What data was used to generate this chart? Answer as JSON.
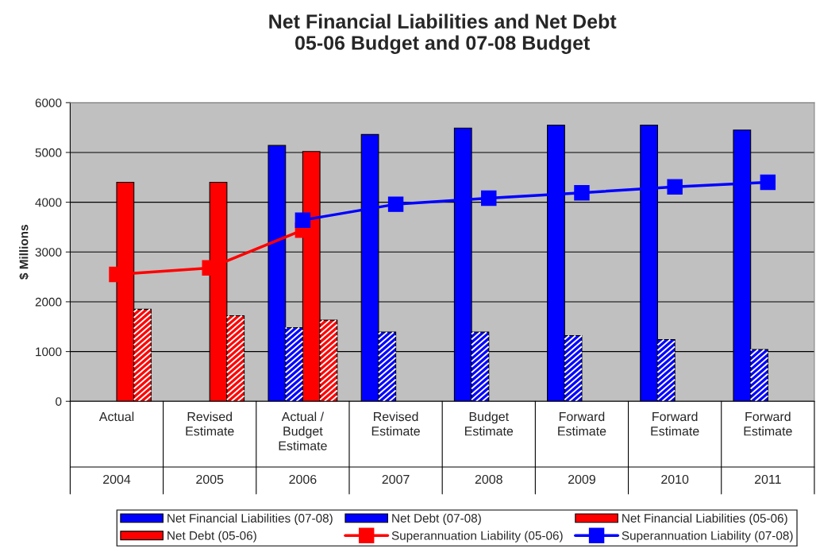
{
  "chart_data": {
    "type": "bar",
    "title": "Net Financial Liabilities and Net Debt\n05-06 Budget and 07-08 Budget",
    "ylabel": "$ Millions",
    "categories": [
      "Actual\n2004",
      "Revised\nEstimate\n2005",
      "Actual /\nBudget\nEstimate\n2006",
      "Revised\nEstimate\n2007",
      "Budget\nEstimate\n2008",
      "Forward\nEstimate\n2009",
      "Forward\nEstimate\n2010",
      "Forward\nEstimate\n2011"
    ],
    "series": [
      {
        "name": "Net Financial Liabilities (07-08)",
        "type": "bar",
        "color": "#0000ff",
        "values": [
          null,
          null,
          5140,
          5360,
          5490,
          5550,
          5550,
          5450
        ]
      },
      {
        "name": "Net Debt (07-08)",
        "type": "bar",
        "color": "#0000ff",
        "values": [
          null,
          null,
          1480,
          1390,
          1390,
          1320,
          1240,
          1040
        ]
      },
      {
        "name": "Net Financial Liabilities (05-06)",
        "type": "bar",
        "color": "#ff0000",
        "values": [
          4400,
          4400,
          5020,
          null,
          null,
          null,
          null,
          null
        ]
      },
      {
        "name": "Net Debt (05-06)",
        "type": "bar",
        "color": "#ff0000",
        "values": [
          1850,
          1720,
          1630,
          null,
          null,
          null,
          null,
          null
        ]
      },
      {
        "name": "Superannuation Liability (05-06)",
        "type": "line",
        "color": "#ff0000",
        "values": [
          2550,
          2680,
          3440,
          null,
          null,
          null,
          null,
          null
        ]
      },
      {
        "name": "Superannuation Liability (07-08)",
        "type": "line",
        "color": "#0000ff",
        "values": [
          null,
          null,
          3640,
          3960,
          4080,
          4190,
          4310,
          4400
        ]
      }
    ],
    "ylim": [
      0,
      6000
    ],
    "yticks": [
      0,
      1000,
      2000,
      3000,
      4000,
      5000,
      6000
    ],
    "grid": "y",
    "legend": "bottom",
    "marker": "square",
    "line_style": "solid"
  }
}
